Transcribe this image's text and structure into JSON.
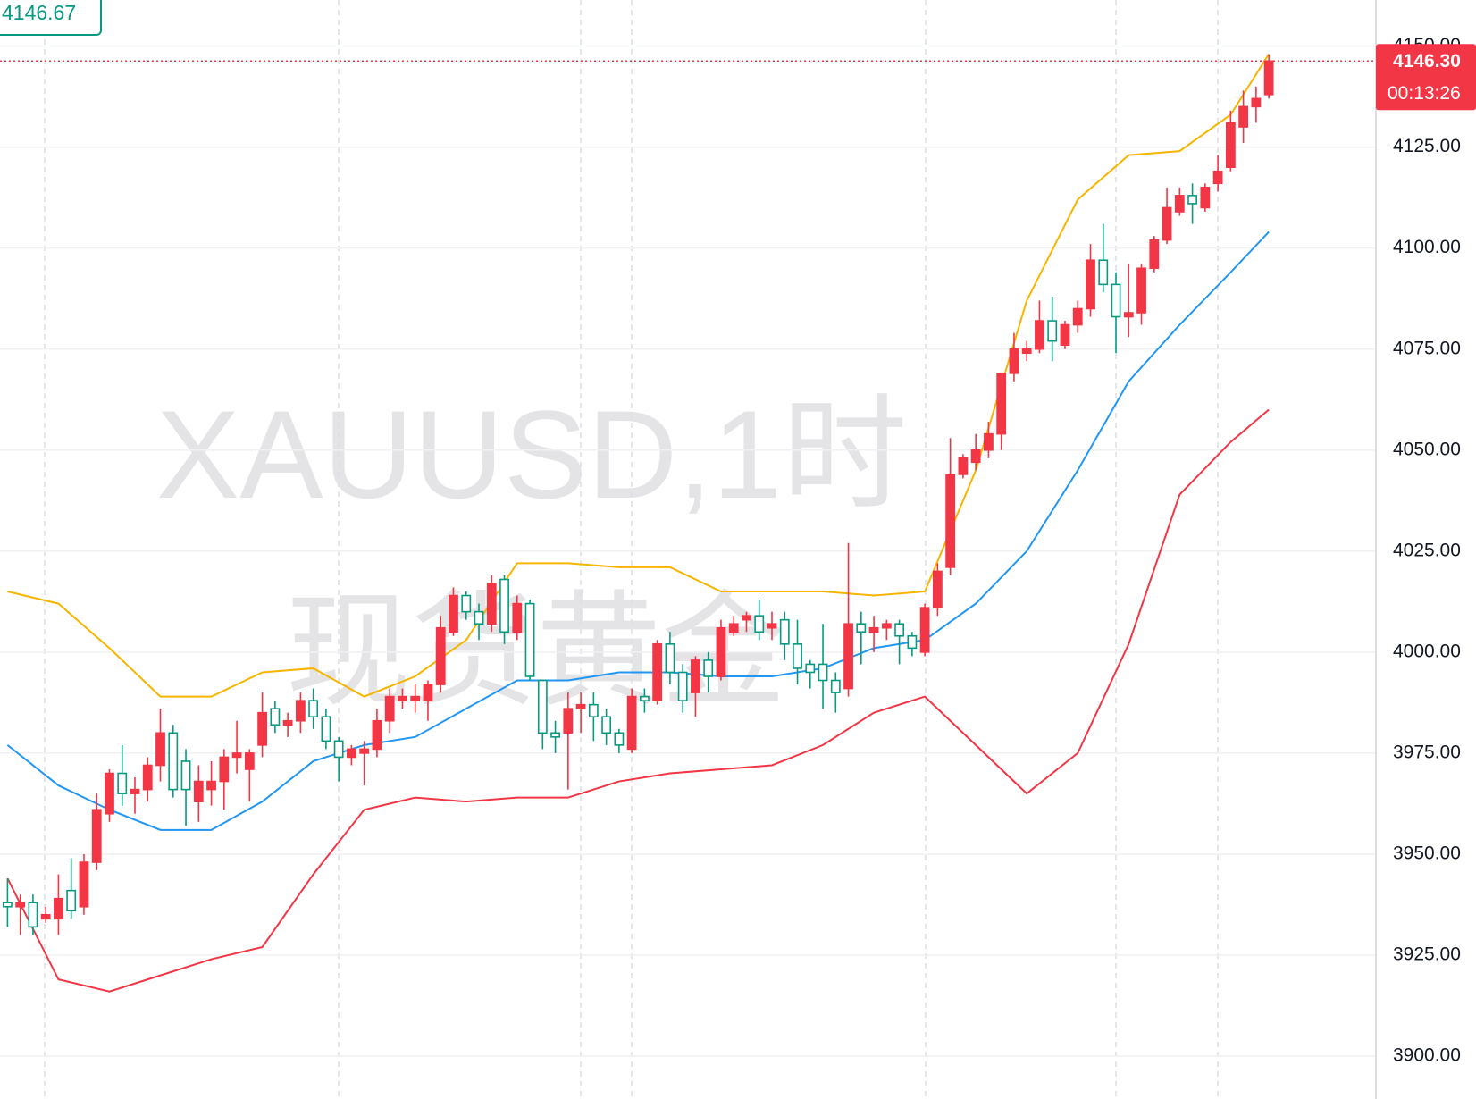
{
  "chart_data": {
    "type": "candlestick",
    "watermark": [
      "XAUUSD,1时",
      "现货黄金"
    ],
    "marker_price": 4146.67,
    "last_price": {
      "value": 4146.3,
      "label": "4146.30"
    },
    "countdown": "00:13:26",
    "up_color": "#f23645",
    "down_color": "#089981",
    "ylim": [
      3889.4,
      4161.4
    ],
    "yticks": [
      {
        "value": 3900,
        "label": "3900.00"
      },
      {
        "value": 3925,
        "label": "3925.00"
      },
      {
        "value": 3950,
        "label": "3950.00"
      },
      {
        "value": 3975,
        "label": "3975.00"
      },
      {
        "value": 4000,
        "label": "4000.00"
      },
      {
        "value": 4025,
        "label": "4025.00"
      },
      {
        "value": 4050,
        "label": "4050.00"
      },
      {
        "value": 4075,
        "label": "4075.00"
      },
      {
        "value": 4100,
        "label": "4100.00"
      },
      {
        "value": 4125,
        "label": "4125.00"
      },
      {
        "value": 4150,
        "label": "4150.00"
      }
    ],
    "grid": true,
    "open": [
      3938,
      3937,
      3938,
      3934,
      3934,
      3941,
      3937,
      3948,
      3960,
      3970,
      3965,
      3966,
      3972,
      3980,
      3973,
      3963,
      3966,
      3968,
      3974,
      3971,
      3977,
      3986,
      3982,
      3983,
      3988,
      3984,
      3978,
      3974,
      3975,
      3976,
      3983,
      3988,
      3988,
      3988,
      3992,
      4005,
      4014,
      4010,
      4007,
      4018,
      4005,
      4012,
      3993,
      3980,
      3980,
      3986,
      3987,
      3984,
      3980,
      3976,
      3989,
      3988,
      4002,
      3995,
      3990,
      3998,
      3994,
      4005,
      4008,
      4009,
      4006,
      4008,
      4002,
      3997,
      3997,
      3993,
      3991,
      4007,
      4005,
      4006,
      4007,
      4004,
      4000,
      4011,
      4021,
      4044,
      4047,
      4050,
      4054,
      4069,
      4074,
      4075,
      4082,
      4076,
      4081,
      4085,
      4097,
      4091,
      4083,
      4084,
      4095,
      4102,
      4109,
      4113,
      4110,
      4116,
      4120,
      4130,
      4135,
      4138
    ],
    "high": [
      3944,
      3940,
      3940,
      3937,
      3945,
      3949,
      3950,
      3965,
      3971,
      3977,
      3969,
      3974,
      3986,
      3982,
      3976,
      3972,
      3973,
      3976,
      3983,
      3976,
      3990,
      3988,
      3985,
      3990,
      3991,
      3986,
      3979,
      3977,
      3978,
      3986,
      3991,
      3991,
      3992,
      3993,
      4009,
      4016,
      4015,
      4012,
      4019,
      4019,
      4014,
      4013,
      3993,
      3983,
      3990,
      3990,
      3990,
      3986,
      3981,
      3991,
      3991,
      4003,
      4005,
      3997,
      3999,
      4000,
      4008,
      4009,
      4010,
      4013,
      4010,
      4010,
      4008,
      3998,
      4007,
      3995,
      4027,
      4010,
      4009,
      4008,
      4008,
      4005,
      4012,
      4022,
      4053,
      4049,
      4054,
      4057,
      4069,
      4079,
      4077,
      4087,
      4088,
      4082,
      4087,
      4101,
      4106,
      4094,
      4096,
      4096,
      4103,
      4115,
      4115,
      4116,
      4116,
      4123,
      4134,
      4139,
      4140,
      4148
    ],
    "low": [
      3932,
      3930,
      3930,
      3933,
      3930,
      3934,
      3935,
      3946,
      3958,
      3962,
      3960,
      3963,
      3968,
      3964,
      3957,
      3958,
      3962,
      3961,
      3970,
      3963,
      3974,
      3980,
      3979,
      3980,
      3981,
      3976,
      3968,
      3972,
      3967,
      3974,
      3980,
      3986,
      3985,
      3983,
      3990,
      4004,
      4008,
      4003,
      4005,
      4002,
      4003,
      3993,
      3976,
      3975,
      3966,
      3980,
      3978,
      3977,
      3975,
      3975,
      3985,
      3987,
      3992,
      3985,
      3984,
      3990,
      3993,
      4004,
      4005,
      4003,
      4003,
      3998,
      3992,
      3991,
      3986,
      3985,
      3989,
      3997,
      4000,
      4003,
      3997,
      3999,
      3999,
      4009,
      4019,
      4043,
      4045,
      4048,
      4050,
      4067,
      4072,
      4074,
      4072,
      4075,
      4079,
      4083,
      4089,
      4074,
      4078,
      4081,
      4094,
      4101,
      4108,
      4106,
      4109,
      4114,
      4119,
      4126,
      4131,
      4137
    ],
    "close": [
      3937,
      3938,
      3932,
      3935,
      3939,
      3936,
      3948,
      3961,
      3970,
      3965,
      3966,
      3972,
      3980,
      3966,
      3966,
      3968,
      3968,
      3974,
      3975,
      3975,
      3985,
      3982,
      3983,
      3988,
      3984,
      3978,
      3974,
      3976,
      3976,
      3983,
      3989,
      3989,
      3989,
      3992,
      4006,
      4014,
      4010,
      4007,
      4017,
      4005,
      4012,
      3994,
      3980,
      3979,
      3986,
      3987,
      3984,
      3980,
      3977,
      3989,
      3988,
      4002,
      3995,
      3988,
      3998,
      3994,
      4006,
      4007,
      4009,
      4005,
      4007,
      4002,
      3996,
      3995,
      3993,
      3990,
      4007,
      4005,
      4006,
      4007,
      4004,
      4001,
      4011,
      4020,
      4044,
      4048,
      4050,
      4054,
      4069,
      4075,
      4075,
      4082,
      4077,
      4081,
      4085,
      4097,
      4091,
      4083,
      4084,
      4095,
      4102,
      4110,
      4113,
      4111,
      4115,
      4119,
      4131,
      4135,
      4137,
      4146.3
    ],
    "band_index": [
      0,
      4,
      8,
      12,
      16,
      20,
      24,
      28,
      32,
      36,
      40,
      44,
      48,
      52,
      56,
      60,
      64,
      68,
      72,
      76,
      80,
      84,
      88,
      92,
      96,
      99
    ],
    "bands": [
      {
        "color": "#f7b500",
        "values": [
          4015,
          4012,
          4001,
          3989,
          3989,
          3995,
          3996,
          3989,
          3994,
          4003,
          4022,
          4022,
          4021,
          4021,
          4015,
          4015,
          4015,
          4014,
          4015,
          4045,
          4087,
          4112,
          4123,
          4124,
          4133,
          4148
        ]
      },
      {
        "color": "#2196f3",
        "values": [
          3977,
          3967,
          3961,
          3956,
          3956,
          3963,
          3973,
          3977,
          3979,
          3986,
          3993,
          3993,
          3995,
          3995,
          3994,
          3994,
          3996,
          4001,
          4003,
          4012,
          4025,
          4045,
          4067,
          4081,
          4094,
          4104
        ]
      },
      {
        "color": "#f23645",
        "values": [
          3944,
          3919,
          3916,
          3920,
          3924,
          3927,
          3945,
          3961,
          3964,
          3963,
          3964,
          3964,
          3968,
          3970,
          3971,
          3972,
          3977,
          3985,
          3989,
          3977,
          3965,
          3975,
          4002,
          4039,
          4052,
          4060
        ]
      }
    ]
  }
}
